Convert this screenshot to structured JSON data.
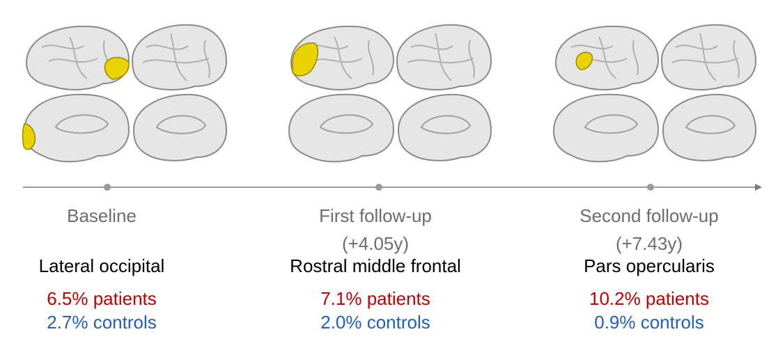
{
  "timepoints": [
    {
      "label": "Baseline",
      "interval": "",
      "region": "Lateral occipital",
      "patients": "6.5% patients",
      "controls": "2.7% controls",
      "highlight": "lateral-occipital"
    },
    {
      "label": "First follow-up",
      "interval": "(+4.05y)",
      "region": "Rostral middle frontal",
      "patients": "7.1% patients",
      "controls": "2.0% controls",
      "highlight": "rostral-middle-frontal"
    },
    {
      "label": "Second follow-up",
      "interval": "(+7.43y)",
      "region": "Pars opercularis",
      "patients": "10.2% patients",
      "controls": "0.9% controls",
      "highlight": "pars-opercularis"
    }
  ],
  "colors": {
    "highlight": "#e8d200",
    "brain": "#e6e6e6",
    "brain_edge": "#8a8a8a",
    "timeline": "#7a7a7a",
    "patients": "#c00000",
    "controls": "#1f5fbf",
    "label": "#6d6d6d"
  }
}
